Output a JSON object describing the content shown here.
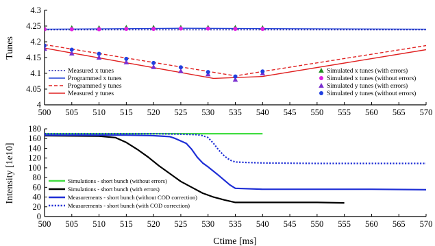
{
  "chart_data": [
    {
      "type": "line",
      "ylabel": "Tunes",
      "xlim": [
        500,
        570
      ],
      "ylim": [
        4,
        4.3
      ],
      "x_ticks": [
        "500",
        "505",
        "510",
        "515",
        "520",
        "525",
        "530",
        "535",
        "540",
        "545",
        "550",
        "555",
        "560",
        "565",
        "570"
      ],
      "y_ticks": [
        "4",
        "4.05",
        "4.1",
        "4.15",
        "4.2",
        "4.25",
        "4.3"
      ],
      "lines": [
        {
          "name": "Measured x tunes",
          "color": "#2222aa",
          "dash": "dotted",
          "x": [
            500,
            570
          ],
          "y": [
            4.238,
            4.238
          ]
        },
        {
          "name": "Programmed x tunes",
          "color": "#1f3fd6",
          "dash": "solid",
          "x": [
            500,
            525,
            570
          ],
          "y": [
            4.24,
            4.243,
            4.24
          ]
        },
        {
          "name": "Programmed y tunes",
          "color": "#e02020",
          "dash": "dashed",
          "x": [
            500,
            535,
            570
          ],
          "y": [
            4.191,
            4.092,
            4.188
          ]
        },
        {
          "name": "Measured y tunes",
          "color": "#e02020",
          "dash": "solid",
          "x": [
            500,
            531,
            540,
            570
          ],
          "y": [
            4.18,
            4.084,
            4.09,
            4.175
          ]
        }
      ],
      "markers": [
        {
          "name": "Simulated x tunes (with errors)",
          "color": "#1f8a1f",
          "shape": "triangle",
          "x": [
            500,
            505,
            510,
            515,
            520,
            525,
            530,
            535,
            540
          ],
          "y": [
            4.243,
            4.244,
            4.244,
            4.245,
            4.245,
            4.245,
            4.245,
            4.245,
            4.244
          ]
        },
        {
          "name": "Simulated x tunes (without errors)",
          "color": "#e020e0",
          "shape": "circle",
          "x": [
            500,
            505,
            510,
            515,
            520,
            525,
            530,
            535,
            540
          ],
          "y": [
            4.24,
            4.24,
            4.24,
            4.241,
            4.241,
            4.242,
            4.242,
            4.241,
            4.241
          ]
        },
        {
          "name": "Simulated y tunes (with errors)",
          "color": "#7a2fd0",
          "shape": "triangle",
          "x": [
            500,
            505,
            510,
            515,
            520,
            525,
            530,
            535,
            540
          ],
          "y": [
            4.178,
            4.163,
            4.15,
            4.135,
            4.12,
            4.107,
            4.097,
            4.08,
            4.1
          ]
        },
        {
          "name": "Simulated y tunes (without errors)",
          "color": "#2040e0",
          "shape": "circle",
          "x": [
            500,
            505,
            510,
            515,
            520,
            525,
            530,
            535,
            540
          ],
          "y": [
            4.188,
            4.175,
            4.162,
            4.146,
            4.133,
            4.119,
            4.104,
            4.09,
            4.106
          ]
        }
      ]
    },
    {
      "type": "line",
      "xlabel": "Ctime [ms]",
      "ylabel": "Intensity [1e10]",
      "xlim": [
        500,
        570
      ],
      "ylim": [
        0,
        180
      ],
      "x_ticks": [
        "500",
        "505",
        "510",
        "515",
        "520",
        "525",
        "530",
        "535",
        "540",
        "545",
        "550",
        "555",
        "560",
        "565",
        "570"
      ],
      "y_ticks": [
        "0",
        "20",
        "40",
        "60",
        "80",
        "100",
        "120",
        "140",
        "160",
        "180"
      ],
      "series": [
        {
          "name": "Simulations - short bunch (without errors)",
          "color": "#44dd44",
          "dash": "solid",
          "x": [
            500,
            540
          ],
          "y": [
            170,
            170
          ]
        },
        {
          "name": "Simulations - short bunch (with errors)",
          "color": "#000000",
          "dash": "solid",
          "x": [
            500,
            510,
            513,
            515,
            517,
            519,
            521,
            523,
            525,
            527,
            529,
            531,
            533,
            535,
            540,
            545,
            550,
            555
          ],
          "y": [
            166,
            165,
            162,
            152,
            138,
            122,
            104,
            88,
            72,
            60,
            48,
            40,
            34,
            29,
            29,
            29,
            29,
            28
          ]
        },
        {
          "name": "Measurements - short bunch (without COD correction)",
          "color": "#1f2fd6",
          "dash": "solid",
          "x": [
            500,
            510,
            515,
            520,
            523,
            524,
            526,
            527,
            528,
            529,
            530,
            532,
            534,
            535,
            540,
            550,
            560,
            570
          ],
          "y": [
            167,
            167,
            167,
            166,
            164,
            160,
            150,
            138,
            122,
            110,
            102,
            84,
            65,
            58,
            56,
            56,
            56,
            55
          ]
        },
        {
          "name": "Measurements - short bunch (with COD correction)",
          "color": "#1f2fd6",
          "dash": "dotted",
          "x": [
            500,
            510,
            520,
            525,
            528,
            529,
            530,
            531,
            532,
            533,
            534,
            535,
            537,
            540,
            550,
            560,
            570
          ],
          "y": [
            170,
            170,
            170,
            169,
            168,
            166,
            162,
            150,
            136,
            124,
            116,
            112,
            111,
            110,
            109,
            109,
            109
          ]
        }
      ]
    }
  ]
}
